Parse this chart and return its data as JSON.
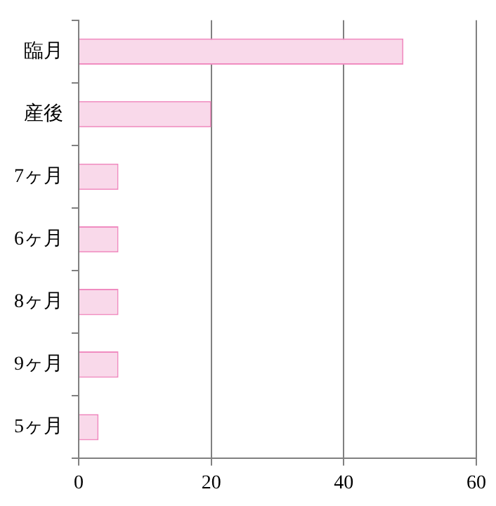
{
  "chart_data": {
    "type": "bar",
    "orientation": "horizontal",
    "categories": [
      "臨月",
      "産後",
      "7ヶ月",
      "6ヶ月",
      "8ヶ月",
      "9ヶ月",
      "5ヶ月"
    ],
    "values": [
      49,
      20,
      6,
      6,
      6,
      6,
      3
    ],
    "color": "#f9d9ea",
    "xlim": [
      0,
      60
    ],
    "xticks": [
      0,
      20,
      40,
      60
    ],
    "grid": "x",
    "legend": false
  }
}
